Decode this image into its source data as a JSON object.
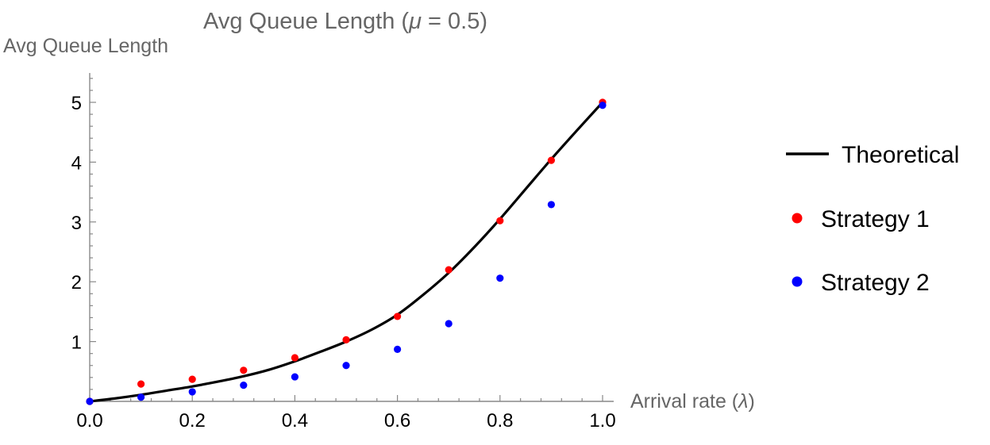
{
  "chart_data": {
    "type": "scatter",
    "title": {
      "prefix": "Avg Queue Length (",
      "symbol": "μ",
      "suffix": " = 0.5)"
    },
    "ylabel": "Avg Queue Length",
    "xlabel": {
      "prefix": "Arrival rate (",
      "symbol": "λ",
      "suffix": ")"
    },
    "xlim": [
      0,
      1
    ],
    "ylim": [
      0,
      5.5
    ],
    "x_ticks": [
      {
        "value": 0.0,
        "label": "0.0"
      },
      {
        "value": 0.2,
        "label": "0.2"
      },
      {
        "value": 0.4,
        "label": "0.4"
      },
      {
        "value": 0.6,
        "label": "0.6"
      },
      {
        "value": 0.8,
        "label": "0.8"
      },
      {
        "value": 1.0,
        "label": "1.0"
      }
    ],
    "y_ticks": [
      {
        "value": 1,
        "label": "1"
      },
      {
        "value": 2,
        "label": "2"
      },
      {
        "value": 3,
        "label": "3"
      },
      {
        "value": 4,
        "label": "4"
      },
      {
        "value": 5,
        "label": "5"
      }
    ],
    "grid": false,
    "legend_position": "right",
    "series": [
      {
        "name": "Theoretical",
        "kind": "line",
        "color": "#000000",
        "x": [
          0.0,
          0.05,
          0.1,
          0.15,
          0.2,
          0.25,
          0.3,
          0.35,
          0.4,
          0.45,
          0.5,
          0.55,
          0.6,
          0.65,
          0.7,
          0.75,
          0.8,
          0.85,
          0.9,
          0.95,
          1.0
        ],
        "y": [
          0.0,
          0.05,
          0.11,
          0.18,
          0.25,
          0.33,
          0.42,
          0.53,
          0.67,
          0.83,
          1.0,
          1.2,
          1.45,
          1.78,
          2.15,
          2.58,
          3.05,
          3.55,
          4.05,
          4.53,
          5.0
        ]
      },
      {
        "name": "Strategy 1",
        "kind": "points",
        "color": "#ff0000",
        "x": [
          0.0,
          0.1,
          0.2,
          0.3,
          0.4,
          0.5,
          0.6,
          0.7,
          0.8,
          0.9,
          1.0
        ],
        "y": [
          0.0,
          0.29,
          0.37,
          0.52,
          0.73,
          1.03,
          1.42,
          2.2,
          3.02,
          4.03,
          5.0
        ]
      },
      {
        "name": "Strategy 2",
        "kind": "points",
        "color": "#0000ff",
        "x": [
          0.0,
          0.1,
          0.2,
          0.3,
          0.4,
          0.5,
          0.6,
          0.7,
          0.8,
          0.9,
          1.0
        ],
        "y": [
          0.0,
          0.07,
          0.16,
          0.27,
          0.41,
          0.6,
          0.87,
          1.3,
          2.06,
          3.29,
          4.95
        ]
      }
    ]
  }
}
